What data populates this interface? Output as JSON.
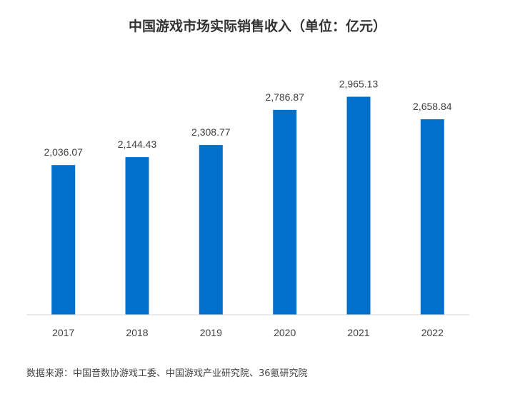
{
  "chart_data": {
    "type": "bar",
    "title": "中国游戏市场实际销售收入（单位：亿元）",
    "xlabel": "",
    "ylabel": "",
    "categories": [
      "2017",
      "2018",
      "2019",
      "2020",
      "2021",
      "2022"
    ],
    "values": [
      2036.07,
      2144.43,
      2308.77,
      2786.87,
      2965.13,
      2658.84
    ],
    "value_labels": [
      "2,036.07",
      "2,144.43",
      "2,308.77",
      "2,786.87",
      "2,965.13",
      "2,658.84"
    ],
    "ylim": [
      0,
      3300
    ],
    "grid": false,
    "legend": "none",
    "bar_color": "#0070CC",
    "axis_color": "#D9D9D9"
  },
  "source_note": "数据来源：中国音数协游戏工委、中国游戏产业研究院、36氪研究院"
}
